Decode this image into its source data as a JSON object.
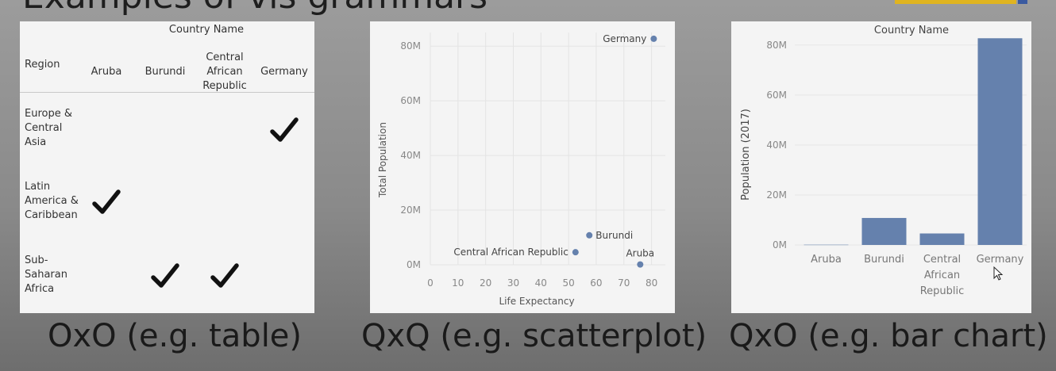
{
  "title_fragment": "Examples of vis grammars",
  "panels": {
    "table": {
      "column_group_header": "Country Name",
      "row_header": "Region",
      "columns": [
        "Aruba",
        "Burundi",
        "Central\nAfrican\nRepublic",
        "Germany"
      ],
      "rows": [
        "Europe &\nCentral\nAsia",
        "Latin\nAmerica &\nCaribbean",
        "Sub-\nSaharan\nAfrica"
      ],
      "checks": [
        {
          "row": 0,
          "col": 3
        },
        {
          "row": 1,
          "col": 0
        },
        {
          "row": 2,
          "col": 1
        },
        {
          "row": 2,
          "col": 2
        }
      ]
    }
  },
  "captions": {
    "table": "OxO (e.g. table)",
    "scatter": "QxQ (e.g. scatterplot)",
    "bar": "QxO (e.g. bar chart)"
  },
  "chart_data": [
    {
      "type": "table",
      "column_header": "Country Name",
      "row_header": "Region",
      "columns": [
        "Aruba",
        "Burundi",
        "Central African Republic",
        "Germany"
      ],
      "rows": [
        "Europe & Central Asia",
        "Latin America & Caribbean",
        "Sub-Saharan Africa"
      ]
    },
    {
      "type": "scatter",
      "xlabel": "Life Expectancy",
      "ylabel": "Total Population",
      "xlim": [
        0,
        85
      ],
      "ylim": [
        0,
        85000000
      ],
      "x_ticks": [
        "0",
        "10",
        "20",
        "30",
        "40",
        "50",
        "60",
        "70",
        "80"
      ],
      "y_ticks": [
        "0M",
        "20M",
        "40M",
        "60M",
        "80M"
      ],
      "grid": true,
      "point_color": "#6581ad",
      "points": [
        {
          "label": "Germany",
          "x": 80.8,
          "y": 82700000,
          "label_side": "left"
        },
        {
          "label": "Burundi",
          "x": 57.5,
          "y": 10800000,
          "label_side": "right"
        },
        {
          "label": "Central African Republic",
          "x": 52.5,
          "y": 4600000,
          "label_side": "left"
        },
        {
          "label": "Aruba",
          "x": 75.9,
          "y": 105000,
          "label_side": "above"
        }
      ]
    },
    {
      "type": "bar",
      "title": "Country Name",
      "ylabel": "Population (2017)",
      "categories": [
        "Aruba",
        "Burundi",
        "Central\nAfrican\nRepublic",
        "Germany"
      ],
      "values": [
        105000,
        10800000,
        4600000,
        82700000
      ],
      "ylim": [
        0,
        85000000
      ],
      "y_ticks": [
        "0M",
        "20M",
        "40M",
        "60M",
        "80M"
      ],
      "bar_color": "#6581ad"
    }
  ]
}
